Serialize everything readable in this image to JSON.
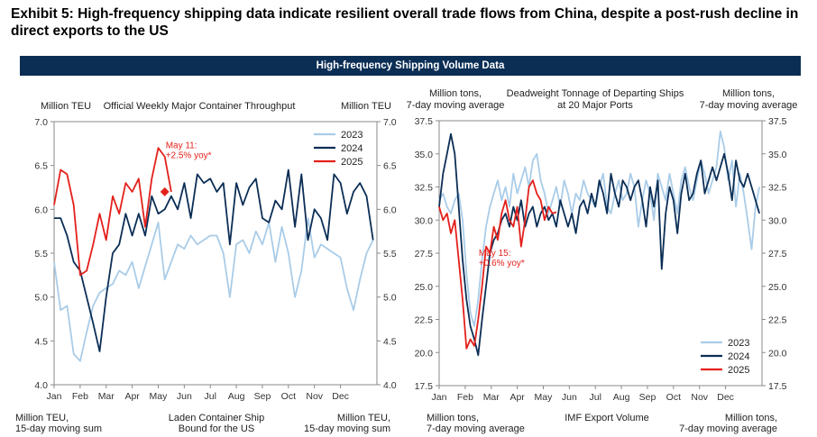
{
  "exhibit_title": "Exhibit 5: High-frequency shipping data indicate resilient overall trade flows from China, despite a post-rush decline in direct exports to the US",
  "banner_title": "High-frequency Shipping Volume Data",
  "colors": {
    "y2023": "#a9cce8",
    "y2024": "#0b2e55",
    "y2025": "#e3201b",
    "banner": "#0b2e55"
  },
  "chart_data": [
    {
      "type": "line",
      "title": "Official Weekly Major Container Throughput",
      "left_label": "Million TEU",
      "right_label": "Million TEU",
      "bottom_left_label": [
        "Million TEU,",
        "15-day moving sum"
      ],
      "bottom_center_label": [
        "Laden Container Ship",
        "Bound for the US"
      ],
      "bottom_right_label": [
        "Million TEU,",
        "15-day moving sum"
      ],
      "ylim": [
        4.0,
        7.0
      ],
      "yticks": [
        "4.0",
        "4.5",
        "5.0",
        "5.5",
        "6.0",
        "6.5",
        "7.0"
      ],
      "xlim": [
        0,
        12.4
      ],
      "months": [
        "Jan",
        "Feb",
        "Mar",
        "Apr",
        "May",
        "Jun",
        "Jul",
        "Aug",
        "Sep",
        "Oct",
        "Nov",
        "Dec"
      ],
      "legend": [
        "2023",
        "2024",
        "2025"
      ],
      "legend_position": "top-right",
      "annotation": {
        "lines": [
          "May 11:",
          "+2.5% yoy*"
        ],
        "x": 4.25,
        "y": 6.2
      },
      "series": [
        {
          "name": "2023",
          "x": [
            0.0,
            0.25,
            0.5,
            0.75,
            1.0,
            1.25,
            1.5,
            1.75,
            2.0,
            2.25,
            2.5,
            2.75,
            3.0,
            3.25,
            3.5,
            3.75,
            4.0,
            4.25,
            4.5,
            4.75,
            5.0,
            5.25,
            5.5,
            5.75,
            6.0,
            6.25,
            6.5,
            6.75,
            7.0,
            7.25,
            7.5,
            7.75,
            8.0,
            8.25,
            8.5,
            8.75,
            9.0,
            9.25,
            9.5,
            9.75,
            10.0,
            10.25,
            10.5,
            10.75,
            11.0,
            11.25,
            11.5,
            11.75,
            12.0,
            12.25
          ],
          "y": [
            5.4,
            4.85,
            4.9,
            4.35,
            4.27,
            4.6,
            4.9,
            5.05,
            5.1,
            5.15,
            5.3,
            5.25,
            5.4,
            5.1,
            5.35,
            5.6,
            5.85,
            5.2,
            5.4,
            5.6,
            5.55,
            5.7,
            5.6,
            5.65,
            5.7,
            5.7,
            5.5,
            5.0,
            5.6,
            5.65,
            5.5,
            5.75,
            5.6,
            5.85,
            5.4,
            5.8,
            5.5,
            5.0,
            5.3,
            5.9,
            5.45,
            5.6,
            5.55,
            5.5,
            5.45,
            5.1,
            4.85,
            5.2,
            5.5,
            5.65
          ]
        },
        {
          "name": "2024",
          "x": [
            0.0,
            0.25,
            0.5,
            0.75,
            1.0,
            1.25,
            1.5,
            1.75,
            2.0,
            2.25,
            2.5,
            2.75,
            3.0,
            3.25,
            3.5,
            3.75,
            4.0,
            4.25,
            4.5,
            4.75,
            5.0,
            5.25,
            5.5,
            5.75,
            6.0,
            6.25,
            6.5,
            6.75,
            7.0,
            7.25,
            7.5,
            7.75,
            8.0,
            8.25,
            8.5,
            8.75,
            9.0,
            9.25,
            9.5,
            9.75,
            10.0,
            10.25,
            10.5,
            10.75,
            11.0,
            11.25,
            11.5,
            11.75,
            12.0,
            12.25
          ],
          "y": [
            5.9,
            5.9,
            5.7,
            5.4,
            5.3,
            5.0,
            4.7,
            4.38,
            5.0,
            5.5,
            5.6,
            5.95,
            5.7,
            5.95,
            5.7,
            6.15,
            5.95,
            6.0,
            6.15,
            6.0,
            6.3,
            5.9,
            6.4,
            6.3,
            6.35,
            6.2,
            6.3,
            5.6,
            6.3,
            6.05,
            6.25,
            6.35,
            5.9,
            5.85,
            6.1,
            6.0,
            6.45,
            5.8,
            6.4,
            5.65,
            6.0,
            5.9,
            5.65,
            6.4,
            6.3,
            5.95,
            6.2,
            6.3,
            6.15,
            5.65
          ]
        },
        {
          "name": "2025",
          "x": [
            0.0,
            0.25,
            0.5,
            0.75,
            1.0,
            1.25,
            1.5,
            1.75,
            2.0,
            2.25,
            2.5,
            2.75,
            3.0,
            3.25,
            3.5,
            3.75,
            4.0,
            4.25,
            4.5
          ],
          "y": [
            6.05,
            6.45,
            6.4,
            6.05,
            5.25,
            5.3,
            5.6,
            5.95,
            5.65,
            6.15,
            5.95,
            6.3,
            6.2,
            6.35,
            5.8,
            6.35,
            6.7,
            6.6,
            6.2
          ]
        }
      ]
    },
    {
      "type": "line",
      "title": [
        "Deadweight Tonnage of Departing Ships",
        "at 20 Major Ports"
      ],
      "left_label": [
        "Million tons,",
        "7-day moving average"
      ],
      "right_label": [
        "Million tons,",
        "7-day moving average"
      ],
      "bottom_left_label": [
        "Million tons,",
        "7-day moving average"
      ],
      "bottom_center_label": [
        "IMF Export Volume"
      ],
      "bottom_right_label": [
        "Million tons,",
        "7-day moving average"
      ],
      "ylim": [
        17.5,
        37.5
      ],
      "yticks": [
        "17.5",
        "20.0",
        "22.5",
        "25.0",
        "27.5",
        "30.0",
        "32.5",
        "35.0",
        "37.5"
      ],
      "xlim": [
        0,
        12.4
      ],
      "months": [
        "Jan",
        "Feb",
        "Mar",
        "Apr",
        "May",
        "Jun",
        "Jul",
        "Aug",
        "Sep",
        "Oct",
        "Nov",
        "Dec"
      ],
      "legend": [
        "2023",
        "2024",
        "2025"
      ],
      "legend_position": "bottom-right",
      "annotation": {
        "lines": [
          "May 15:",
          "+0.6% yoy*"
        ],
        "x": 4.45,
        "y": 30.6
      },
      "series": [
        {
          "name": "2023",
          "x": [
            0.0,
            0.15,
            0.3,
            0.45,
            0.6,
            0.75,
            0.9,
            1.05,
            1.2,
            1.35,
            1.5,
            1.65,
            1.8,
            1.95,
            2.1,
            2.25,
            2.4,
            2.55,
            2.7,
            2.85,
            3.0,
            3.15,
            3.3,
            3.45,
            3.6,
            3.75,
            3.9,
            4.05,
            4.2,
            4.35,
            4.5,
            4.65,
            4.8,
            4.95,
            5.1,
            5.25,
            5.4,
            5.55,
            5.7,
            5.85,
            6.0,
            6.15,
            6.3,
            6.45,
            6.6,
            6.75,
            6.9,
            7.05,
            7.2,
            7.35,
            7.5,
            7.65,
            7.8,
            7.95,
            8.1,
            8.25,
            8.4,
            8.55,
            8.7,
            8.85,
            9.0,
            9.15,
            9.3,
            9.45,
            9.6,
            9.75,
            9.9,
            10.05,
            10.2,
            10.35,
            10.5,
            10.65,
            10.8,
            10.95,
            11.1,
            11.25,
            11.4,
            11.55,
            11.7,
            11.85,
            12.0,
            12.15,
            12.3
          ],
          "y": [
            31.5,
            32.0,
            31.0,
            30.5,
            31.5,
            32.0,
            30.0,
            26.0,
            23.0,
            22.0,
            24.0,
            27.0,
            29.5,
            31.0,
            32.0,
            33.0,
            31.5,
            32.5,
            31.0,
            33.5,
            32.0,
            33.0,
            34.0,
            32.5,
            34.5,
            35.0,
            33.0,
            32.0,
            30.5,
            31.5,
            32.5,
            31.0,
            33.0,
            32.0,
            30.5,
            32.0,
            31.5,
            33.0,
            32.0,
            31.5,
            31.0,
            32.5,
            33.5,
            31.0,
            30.5,
            32.0,
            33.0,
            31.5,
            32.0,
            33.5,
            32.5,
            29.5,
            31.5,
            33.0,
            32.0,
            30.0,
            33.5,
            32.5,
            31.5,
            33.5,
            32.0,
            30.5,
            33.0,
            34.0,
            32.5,
            31.5,
            33.0,
            34.5,
            33.5,
            32.0,
            33.0,
            34.0,
            36.7,
            35.5,
            33.0,
            34.5,
            31.0,
            33.5,
            32.0,
            30.0,
            27.8,
            31.0,
            32.5
          ]
        },
        {
          "name": "2024",
          "x": [
            0.0,
            0.15,
            0.3,
            0.45,
            0.6,
            0.75,
            0.9,
            1.05,
            1.2,
            1.35,
            1.5,
            1.65,
            1.8,
            1.95,
            2.1,
            2.25,
            2.4,
            2.55,
            2.7,
            2.85,
            3.0,
            3.15,
            3.3,
            3.45,
            3.6,
            3.75,
            3.9,
            4.05,
            4.2,
            4.35,
            4.5,
            4.65,
            4.8,
            4.95,
            5.1,
            5.25,
            5.4,
            5.55,
            5.7,
            5.85,
            6.0,
            6.15,
            6.3,
            6.45,
            6.6,
            6.75,
            6.9,
            7.05,
            7.2,
            7.35,
            7.5,
            7.65,
            7.8,
            7.95,
            8.1,
            8.25,
            8.4,
            8.55,
            8.7,
            8.85,
            9.0,
            9.15,
            9.3,
            9.45,
            9.6,
            9.75,
            9.9,
            10.05,
            10.2,
            10.35,
            10.5,
            10.65,
            10.8,
            10.95,
            11.1,
            11.25,
            11.4,
            11.55,
            11.7,
            11.85,
            12.0,
            12.15,
            12.3
          ],
          "y": [
            31.0,
            33.5,
            35.0,
            36.5,
            35.0,
            31.0,
            27.0,
            24.0,
            22.0,
            21.0,
            19.8,
            22.5,
            25.0,
            27.5,
            28.5,
            29.0,
            30.0,
            30.5,
            29.5,
            31.0,
            30.0,
            31.5,
            29.5,
            30.5,
            31.0,
            29.5,
            30.5,
            31.0,
            30.0,
            30.5,
            29.5,
            31.5,
            30.5,
            29.5,
            30.5,
            29.0,
            31.0,
            31.5,
            30.5,
            32.0,
            31.0,
            33.0,
            32.0,
            30.5,
            33.5,
            32.0,
            31.0,
            33.0,
            32.5,
            31.5,
            32.5,
            33.0,
            31.5,
            29.5,
            32.5,
            31.0,
            33.0,
            26.3,
            30.5,
            32.5,
            31.5,
            29.0,
            32.0,
            33.5,
            31.5,
            32.0,
            33.5,
            34.5,
            32.0,
            33.0,
            34.0,
            33.0,
            34.0,
            35.0,
            33.5,
            31.5,
            34.5,
            33.0,
            32.5,
            33.5,
            32.5,
            31.5,
            30.5
          ]
        },
        {
          "name": "2025",
          "x": [
            0.0,
            0.15,
            0.3,
            0.45,
            0.6,
            0.75,
            0.9,
            1.05,
            1.2,
            1.35,
            1.5,
            1.65,
            1.8,
            1.95,
            2.1,
            2.25,
            2.4,
            2.55,
            2.7,
            2.85,
            3.0,
            3.15,
            3.3,
            3.45,
            3.6,
            3.75,
            3.9,
            4.05,
            4.2,
            4.35,
            4.5
          ],
          "y": [
            31.0,
            30.0,
            30.5,
            29.0,
            30.0,
            27.0,
            24.0,
            20.3,
            21.0,
            20.5,
            22.5,
            25.0,
            28.0,
            27.5,
            29.5,
            28.5,
            30.5,
            31.5,
            30.0,
            29.5,
            31.0,
            28.0,
            30.0,
            32.5,
            33.0,
            32.0,
            31.5,
            30.0,
            31.0,
            30.5,
            30.6
          ]
        }
      ]
    }
  ]
}
